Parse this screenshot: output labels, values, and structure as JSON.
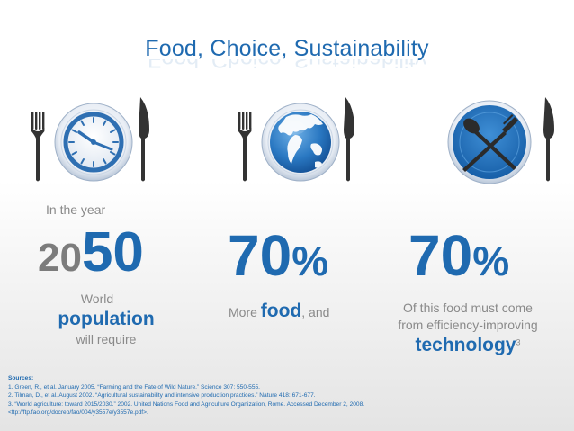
{
  "title": "Food, Choice, Sustainability",
  "colors": {
    "brand_blue": "#1f6ab0",
    "dark_blue": "#14539a",
    "grey_text": "#8a8a8a",
    "utensil": "#333333"
  },
  "icons": [
    "clock-plate-icon",
    "globe-plate-icon",
    "crossed-utensils-plate-icon",
    "fork-icon",
    "knife-icon",
    "spoon-icon"
  ],
  "stat1": {
    "intro": "In the year",
    "year_prefix": "20",
    "year_suffix": "50",
    "line1": "World",
    "line2": "population",
    "line3": "will require"
  },
  "stat2": {
    "number": "70",
    "percent": "%",
    "text_before": "More ",
    "text_bold": "food",
    "text_after": ", and"
  },
  "stat3": {
    "number": "70",
    "percent": "%",
    "line1": "Of this food must come",
    "line2": "from efficiency-improving",
    "line3": "technology",
    "sup": "3"
  },
  "sources": {
    "heading": "Sources:",
    "items": [
      "1. Green, R., et al. January 2005. “Farming and the Fate of Wild Nature.” Science 307: 550-555.",
      "2. Tilman, D., et al. August 2002. “Agricultural sustainability and intensive production practices.” Nature 418: 671-677.",
      "3. “World agriculture: toward 2015/2030.” 2002. United Nations Food and Agriculture Organization, Rome. Accessed December 2, 2008.",
      "<ftp://ftp.fao.org/docrep/fao/004/y3557e/y3557e.pdf>."
    ]
  }
}
